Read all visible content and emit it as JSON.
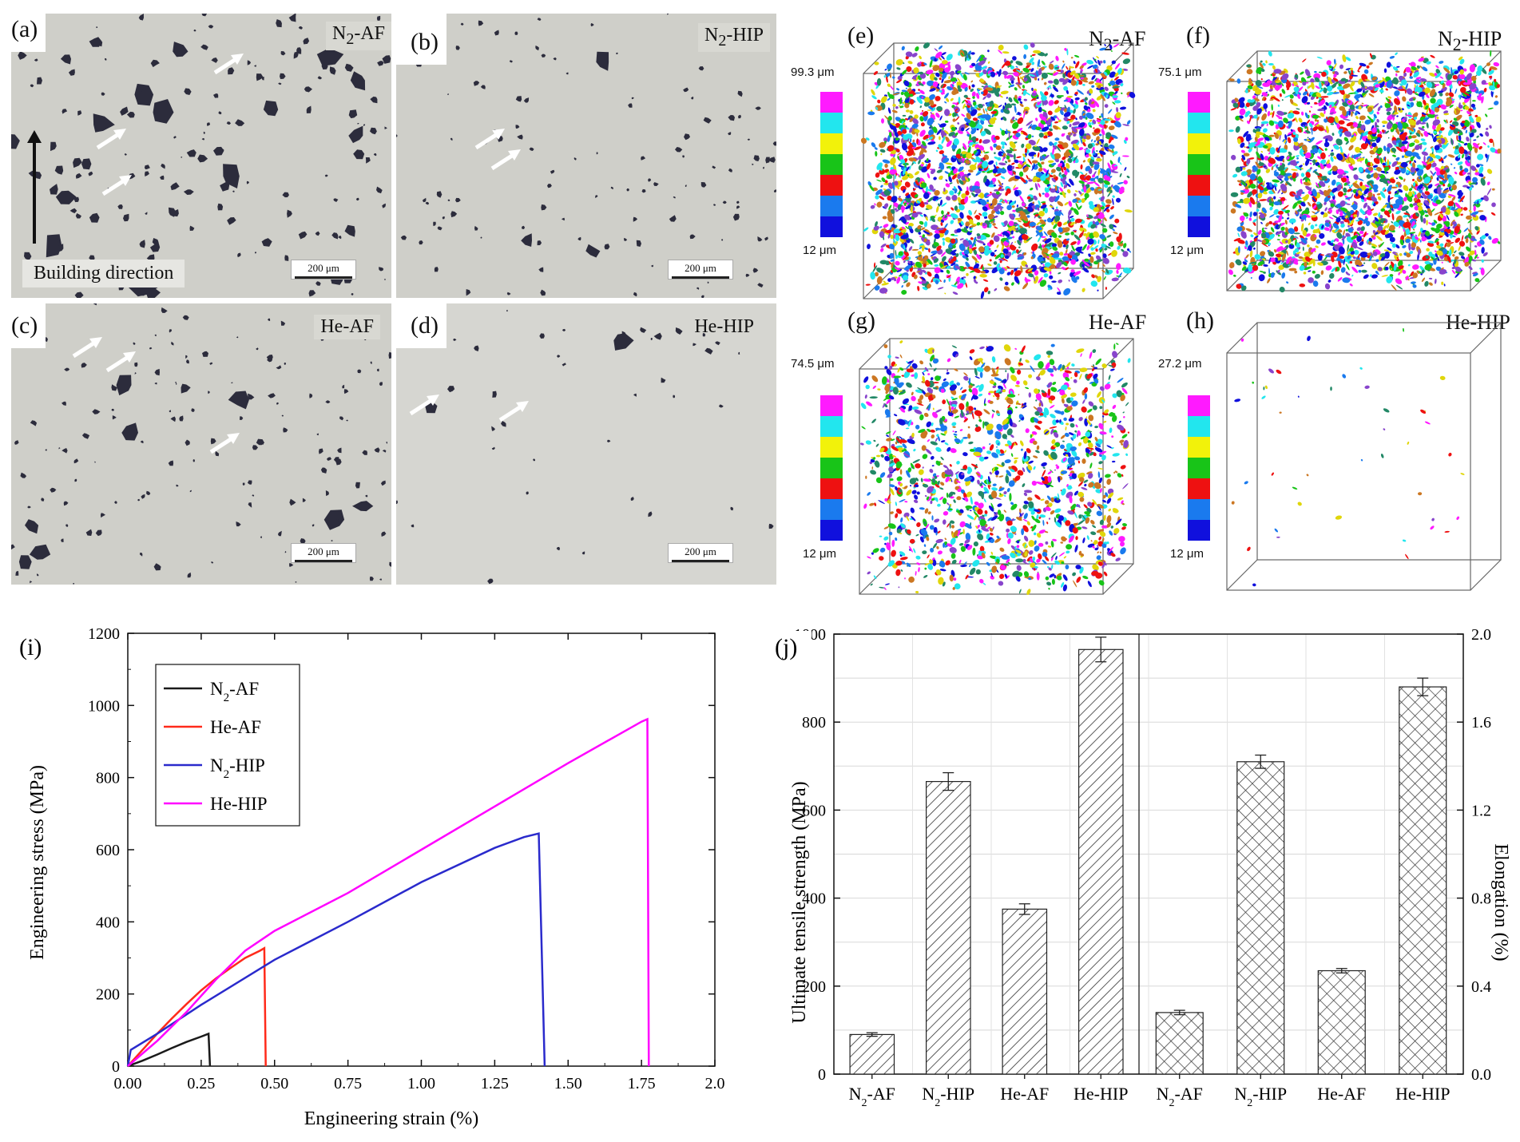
{
  "colors": {
    "n2af": "#1a1a1a",
    "heaf": "#ff2a1a",
    "n2hip": "#2a2acc",
    "hehip": "#ff00ff",
    "micro_bg": "#cfcfc9",
    "pore": "#2c2c3c"
  },
  "micrographs": [
    {
      "panel": "(a)",
      "sample_main": "N",
      "sample_sub": "2",
      "sample_rest": "-AF",
      "scale": "200 μm"
    },
    {
      "panel": "(b)",
      "sample_main": "N",
      "sample_sub": "2",
      "sample_rest": "-HIP",
      "scale": "200 μm"
    },
    {
      "panel": "(c)",
      "sample_main": "He-AF",
      "sample_sub": "",
      "sample_rest": "",
      "scale": "200 μm"
    },
    {
      "panel": "(d)",
      "sample_main": "He-HIP",
      "sample_sub": "",
      "sample_rest": "",
      "scale": "200 μm"
    }
  ],
  "building_direction": "Building direction",
  "ct_panels": [
    {
      "panel": "(e)",
      "sample_main": "N",
      "sample_sub": "2",
      "sample_rest": "-AF",
      "max": "99.3 μm",
      "min": "12 μm",
      "density": "high"
    },
    {
      "panel": "(f)",
      "sample_main": "N",
      "sample_sub": "2",
      "sample_rest": "-HIP",
      "max": "75.1 μm",
      "min": "12 μm",
      "density": "high"
    },
    {
      "panel": "(g)",
      "sample_main": "He-AF",
      "sample_sub": "",
      "sample_rest": "",
      "max": "74.5 μm",
      "min": "12 μm",
      "density": "medium"
    },
    {
      "panel": "(h)",
      "sample_main": "He-HIP",
      "sample_sub": "",
      "sample_rest": "",
      "max": "27.2 μm",
      "min": "12 μm",
      "density": "sparse"
    }
  ],
  "colorbar_colors": [
    "#ff1aff",
    "#22e6ee",
    "#f2f20a",
    "#18c418",
    "#ee1111",
    "#1a7aee",
    "#1010dd"
  ],
  "stress_strain": {
    "panel": "(i)",
    "xlabel": "Engineering strain (%)",
    "ylabel": "Engineering stress (MPa)",
    "xticks": [
      "0.00",
      "0.25",
      "0.50",
      "0.75",
      "1.00",
      "1.25",
      "1.50",
      "1.75",
      "2.0"
    ],
    "yticks": [
      "0",
      "200",
      "400",
      "600",
      "800",
      "1000",
      "1200"
    ],
    "legend": [
      {
        "main": "N",
        "sub": "2",
        "rest": "-AF",
        "color": "#1a1a1a"
      },
      {
        "main": "He-AF",
        "sub": "",
        "rest": "",
        "color": "#ff2a1a"
      },
      {
        "main": "N",
        "sub": "2",
        "rest": "-HIP",
        "color": "#2a2acc"
      },
      {
        "main": "He-HIP",
        "sub": "",
        "rest": "",
        "color": "#ff00ff"
      }
    ]
  },
  "chart_data": [
    {
      "type": "line",
      "title": "",
      "xlabel": "Engineering strain (%)",
      "ylabel": "Engineering stress (MPa)",
      "xlim": [
        0,
        2.0
      ],
      "ylim": [
        0,
        1200
      ],
      "series": [
        {
          "name": "N2-AF",
          "color": "#1a1a1a",
          "x": [
            0,
            0.05,
            0.1,
            0.15,
            0.2,
            0.25,
            0.275,
            0.28
          ],
          "y": [
            0,
            15,
            32,
            50,
            67,
            82,
            90,
            0
          ]
        },
        {
          "name": "He-AF",
          "color": "#ff2a1a",
          "x": [
            0,
            0.05,
            0.1,
            0.15,
            0.2,
            0.25,
            0.3,
            0.35,
            0.4,
            0.45,
            0.465,
            0.47
          ],
          "y": [
            0,
            45,
            90,
            132,
            172,
            210,
            243,
            272,
            300,
            320,
            327,
            0
          ]
        },
        {
          "name": "N2-HIP",
          "color": "#2a2acc",
          "x": [
            0,
            0.01,
            0.1,
            0.25,
            0.5,
            0.75,
            1.0,
            1.25,
            1.35,
            1.4,
            1.42
          ],
          "y": [
            0,
            45,
            90,
            170,
            295,
            400,
            510,
            605,
            635,
            645,
            0
          ]
        },
        {
          "name": "He-HIP",
          "color": "#ff00ff",
          "x": [
            0,
            0.1,
            0.2,
            0.3,
            0.4,
            0.5,
            0.75,
            1.0,
            1.25,
            1.5,
            1.75,
            1.77,
            1.775
          ],
          "y": [
            0,
            70,
            150,
            240,
            320,
            375,
            480,
            600,
            720,
            840,
            955,
            962,
            0
          ]
        }
      ]
    },
    {
      "type": "bar",
      "panel": "(j)",
      "title": "",
      "xlabel": "",
      "ylabel": "Ultimate tensile strength (MPa)",
      "y2label": "Elongation (%)",
      "ylim": [
        0,
        1000
      ],
      "y2lim": [
        0.0,
        2.0
      ],
      "yticks": [
        "0",
        "200",
        "400",
        "600",
        "800",
        "1000"
      ],
      "y2ticks": [
        "0.0",
        "0.4",
        "0.8",
        "1.2",
        "1.6",
        "2.0"
      ],
      "groups": [
        {
          "name": "Ultimate tensile strength",
          "axis": "left",
          "pattern": "diagonal",
          "categories": [
            {
              "main": "N",
              "sub": "2",
              "rest": "-AF"
            },
            {
              "main": "N",
              "sub": "2",
              "rest": "-HIP"
            },
            {
              "main": "He-AF",
              "sub": "",
              "rest": ""
            },
            {
              "main": "He-HIP",
              "sub": "",
              "rest": ""
            }
          ],
          "values": [
            90,
            665,
            375,
            965
          ],
          "errors": [
            4,
            20,
            12,
            28
          ]
        },
        {
          "name": "Elongation",
          "axis": "right",
          "pattern": "crosshatch",
          "categories": [
            {
              "main": "N",
              "sub": "2",
              "rest": "-AF"
            },
            {
              "main": "N",
              "sub": "2",
              "rest": "-HIP"
            },
            {
              "main": "He-AF",
              "sub": "",
              "rest": ""
            },
            {
              "main": "He-HIP",
              "sub": "",
              "rest": ""
            }
          ],
          "values": [
            0.28,
            1.42,
            0.47,
            1.76
          ],
          "errors": [
            0.01,
            0.03,
            0.01,
            0.04
          ]
        }
      ]
    }
  ]
}
